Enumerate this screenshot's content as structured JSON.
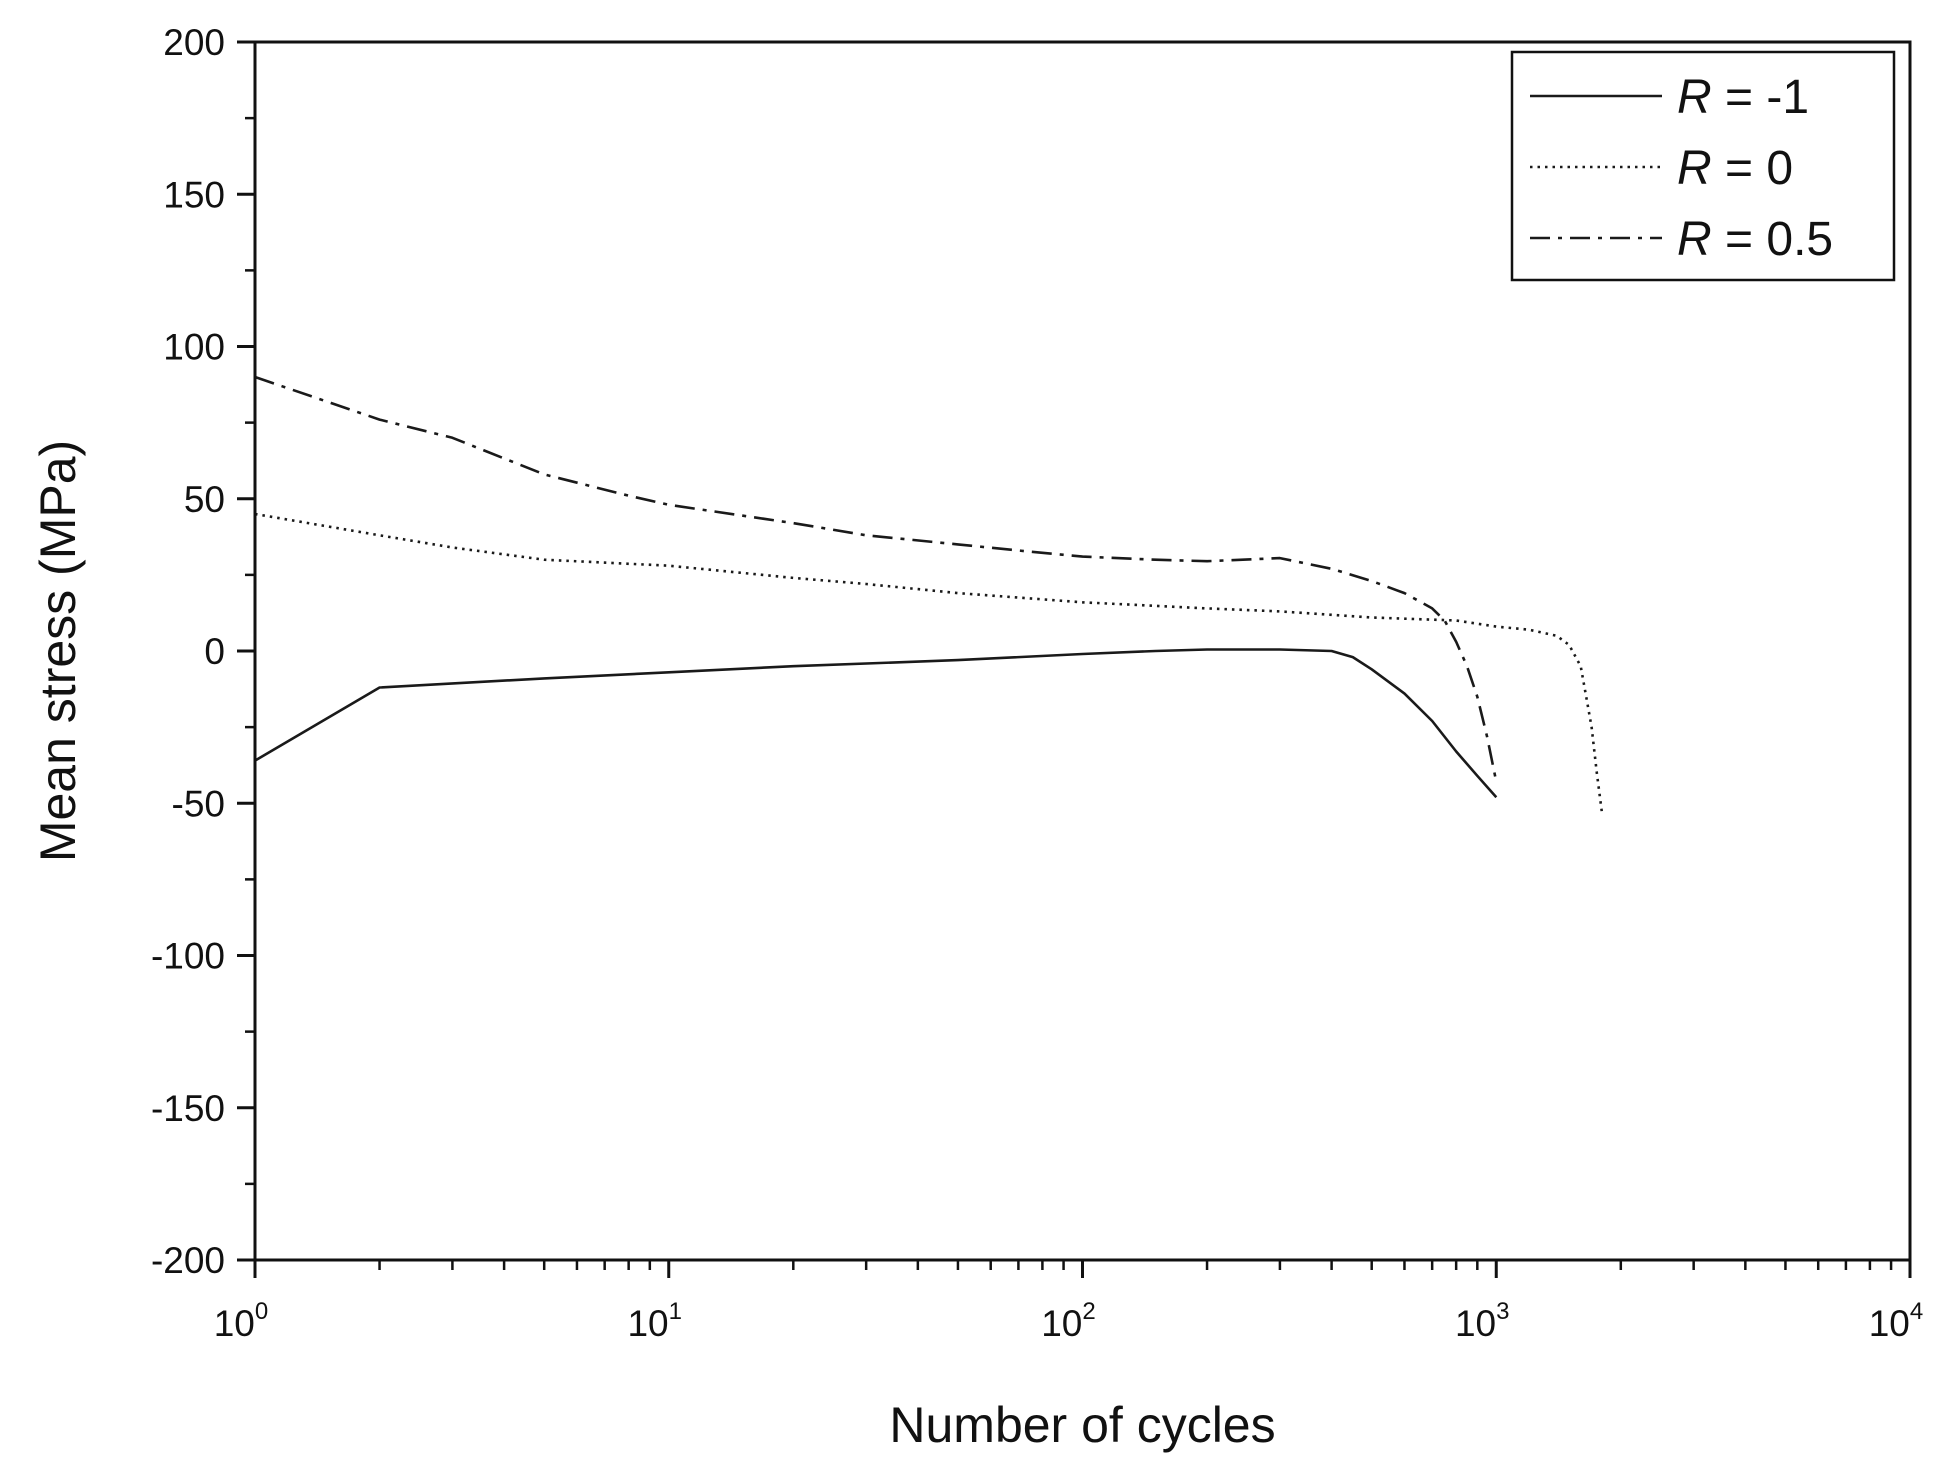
{
  "chart_data": {
    "type": "line",
    "title": "",
    "xlabel": "Number of cycles",
    "ylabel": "Mean stress (MPa)",
    "xscale": "log",
    "xlim": [
      1,
      10000
    ],
    "ylim": [
      -200,
      200
    ],
    "grid": false,
    "legend_position": "top-right",
    "y_ticks": [
      200,
      150,
      100,
      50,
      0,
      -50,
      -100,
      -150,
      -200
    ],
    "y_tick_labels": [
      "200",
      "150",
      "100",
      "50",
      "0",
      "-50",
      "-100",
      "-150",
      "-200"
    ],
    "x_ticks": [
      {
        "value": 1,
        "base": "10",
        "exp": "0"
      },
      {
        "value": 10,
        "base": "10",
        "exp": "1"
      },
      {
        "value": 100,
        "base": "10",
        "exp": "2"
      },
      {
        "value": 1000,
        "base": "10",
        "exp": "3"
      },
      {
        "value": 10000,
        "base": "10",
        "exp": "4"
      }
    ],
    "series": [
      {
        "name": "R = -1",
        "legend_var": "R",
        "legend_rest": " = -1",
        "style": "solid",
        "x": [
          1,
          2,
          5,
          10,
          20,
          50,
          100,
          150,
          200,
          300,
          400,
          450,
          500,
          600,
          700,
          800,
          900,
          1000
        ],
        "y": [
          -36,
          -12,
          -9,
          -7,
          -5,
          -3,
          -1,
          0,
          0.5,
          0.5,
          0,
          -2,
          -6,
          -14,
          -23,
          -33,
          -41,
          -48
        ]
      },
      {
        "name": "R = 0",
        "legend_var": "R",
        "legend_rest": " = 0",
        "style": "dotted",
        "x": [
          1,
          2,
          3,
          5,
          10,
          20,
          30,
          50,
          100,
          200,
          300,
          500,
          800,
          1000,
          1200,
          1400,
          1500,
          1600,
          1650,
          1700,
          1750,
          1800
        ],
        "y": [
          45,
          38,
          34,
          30,
          28,
          24,
          22,
          19,
          16,
          14,
          13,
          11,
          10,
          8,
          7,
          5,
          2,
          -5,
          -15,
          -25,
          -40,
          -53
        ]
      },
      {
        "name": "R = 0.5",
        "legend_var": "R",
        "legend_rest": " = 0.5",
        "style": "dash-dot",
        "x": [
          1,
          2,
          3,
          5,
          8,
          10,
          20,
          30,
          50,
          70,
          100,
          150,
          200,
          300,
          400,
          500,
          600,
          700,
          750,
          800,
          850,
          900,
          950,
          1000
        ],
        "y": [
          90,
          76,
          70,
          58,
          51,
          48,
          42,
          38,
          35,
          33,
          31,
          30,
          29.5,
          30.5,
          27,
          23,
          19,
          14,
          10,
          3,
          -5,
          -15,
          -28,
          -43
        ]
      }
    ]
  }
}
